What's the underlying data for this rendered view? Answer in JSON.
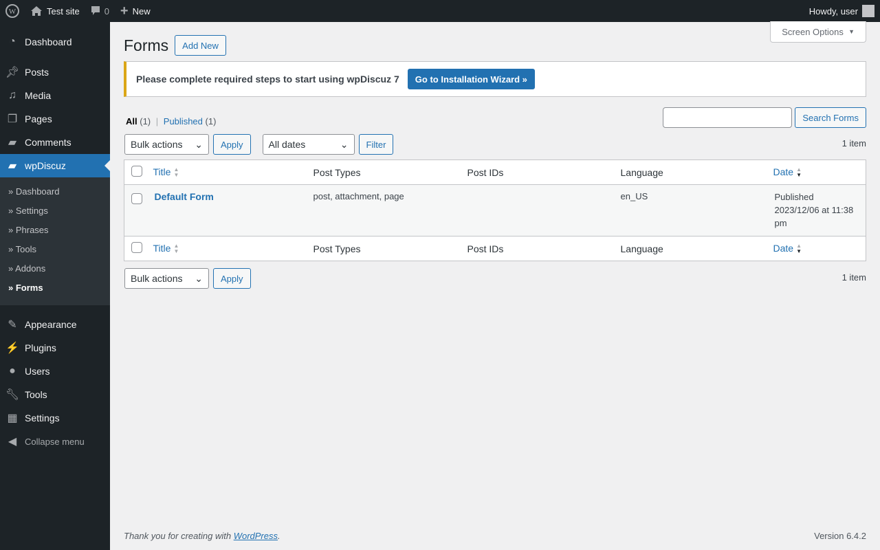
{
  "adminbar": {
    "site": "Test site",
    "comments": "0",
    "new": "New",
    "howdy": "Howdy, user"
  },
  "menu": {
    "items": [
      "Dashboard",
      "Posts",
      "Media",
      "Pages",
      "Comments",
      "wpDiscuz"
    ],
    "sub": [
      "» Dashboard",
      "» Settings",
      "» Phrases",
      "» Tools",
      "» Addons",
      "» Forms"
    ],
    "items2": [
      "Appearance",
      "Plugins",
      "Users",
      "Tools",
      "Settings"
    ],
    "collapse": "Collapse menu"
  },
  "page": {
    "title": "Forms",
    "add_new": "Add New",
    "screen_options": "Screen Options"
  },
  "notice": {
    "text": "Please complete required steps to start using wpDiscuz 7",
    "button": "Go to Installation Wizard »"
  },
  "filters": {
    "all": "All",
    "all_count": "(1)",
    "published": "Published",
    "published_count": "(1)",
    "sep": "|",
    "search_button": "Search Forms",
    "bulk": "Bulk actions",
    "apply": "Apply",
    "dates": "All dates",
    "filter": "Filter",
    "count": "1 item"
  },
  "table": {
    "columns": [
      "Title",
      "Post Types",
      "Post IDs",
      "Language",
      "Date"
    ],
    "rows": [
      {
        "title": "Default Form",
        "post_types": "post, attachment, page",
        "post_ids": "",
        "language": "en_US",
        "date_status": "Published",
        "date": "2023/12/06 at 11:38 pm"
      }
    ]
  },
  "footer": {
    "thanks": "Thank you for creating with ",
    "wp": "WordPress",
    "period": ".",
    "version": "Version 6.4.2"
  }
}
